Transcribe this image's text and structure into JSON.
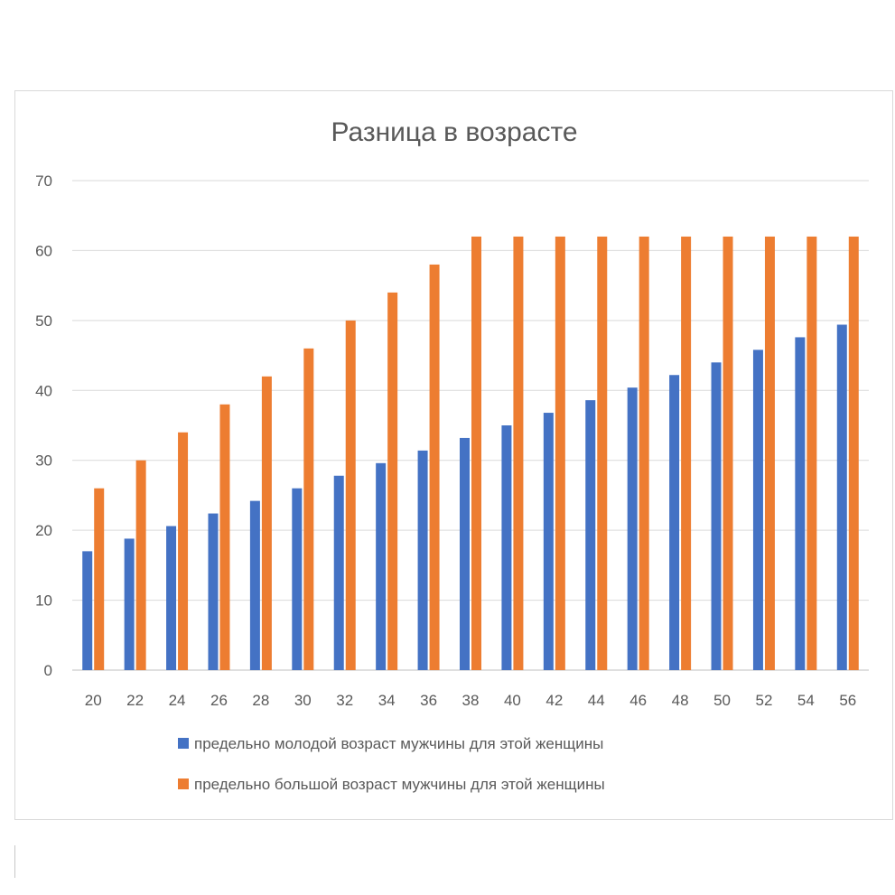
{
  "chart_data": {
    "type": "bar",
    "title": "Разница в возрасте",
    "xlabel": "",
    "ylabel": "",
    "ylim": [
      0,
      70
    ],
    "yticks": [
      0,
      10,
      20,
      30,
      40,
      50,
      60,
      70
    ],
    "grid": true,
    "legend_position": "bottom",
    "categories": [
      "20",
      "22",
      "24",
      "26",
      "28",
      "30",
      "32",
      "34",
      "36",
      "38",
      "40",
      "42",
      "44",
      "46",
      "48",
      "50",
      "52",
      "54",
      "56"
    ],
    "series": [
      {
        "name": "предельно молодой возраст мужчины для этой женщины",
        "color": "#4472c4",
        "values": [
          17,
          18.8,
          20.6,
          22.4,
          24.2,
          26,
          27.8,
          29.6,
          31.4,
          33.2,
          35,
          36.8,
          38.6,
          40.4,
          42.2,
          44,
          45.8,
          47.6,
          49.4
        ]
      },
      {
        "name": "предельно большой возраст мужчины для этой женщины",
        "color": "#ed7d31",
        "values": [
          26,
          30,
          34,
          38,
          42,
          46,
          50,
          54,
          58,
          62,
          62,
          62,
          62,
          62,
          62,
          62,
          62,
          62,
          62
        ]
      }
    ]
  }
}
